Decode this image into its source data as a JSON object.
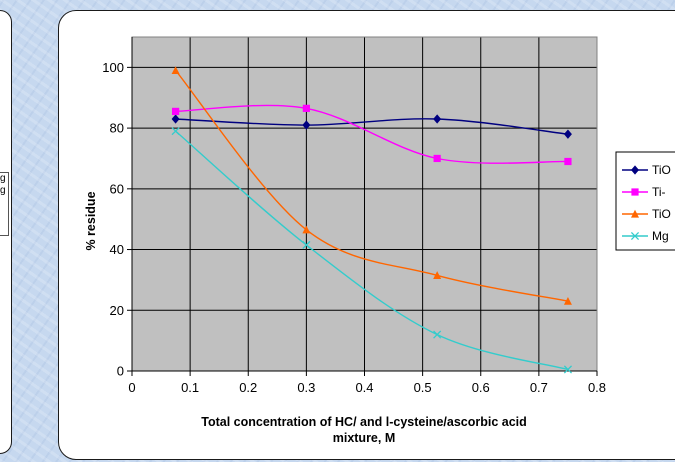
{
  "chart_data": {
    "type": "line",
    "title": "",
    "xlabel_lines": [
      "Total concentration of HC/ and l-cysteine/ascorbic acid",
      "mixture, M"
    ],
    "ylabel": "% residue",
    "xlim": [
      0,
      0.8
    ],
    "ylim": [
      0,
      110
    ],
    "x_ticks": [
      "0",
      "0.1",
      "0.2",
      "0.3",
      "0.4",
      "0.5",
      "0.6",
      "0.7",
      "0.8"
    ],
    "y_ticks": [
      "0",
      "20",
      "40",
      "60",
      "80",
      "100"
    ],
    "grid": true,
    "legend_position": "right",
    "series": [
      {
        "name": "TiO",
        "color": "#000080",
        "marker": "diamond",
        "x": [
          0.075,
          0.3,
          0.525,
          0.75
        ],
        "y": [
          83,
          81,
          83,
          78
        ]
      },
      {
        "name": "Ti-",
        "color": "#ff00ff",
        "marker": "square",
        "x": [
          0.075,
          0.3,
          0.525,
          0.75
        ],
        "y": [
          85.5,
          86.5,
          70,
          69
        ]
      },
      {
        "name": "TiO",
        "color": "#ff6600",
        "marker": "triangle",
        "x": [
          0.075,
          0.3,
          0.525,
          0.75
        ],
        "y": [
          99,
          46.5,
          31.5,
          23
        ]
      },
      {
        "name": "Mg",
        "color": "#33cccc",
        "marker": "x",
        "x": [
          0.075,
          0.3,
          0.525,
          0.75
        ],
        "y": [
          79,
          41.5,
          12,
          0.5
        ]
      }
    ]
  },
  "left_panel": {
    "fragment_lines": [
      "g",
      "g"
    ]
  }
}
